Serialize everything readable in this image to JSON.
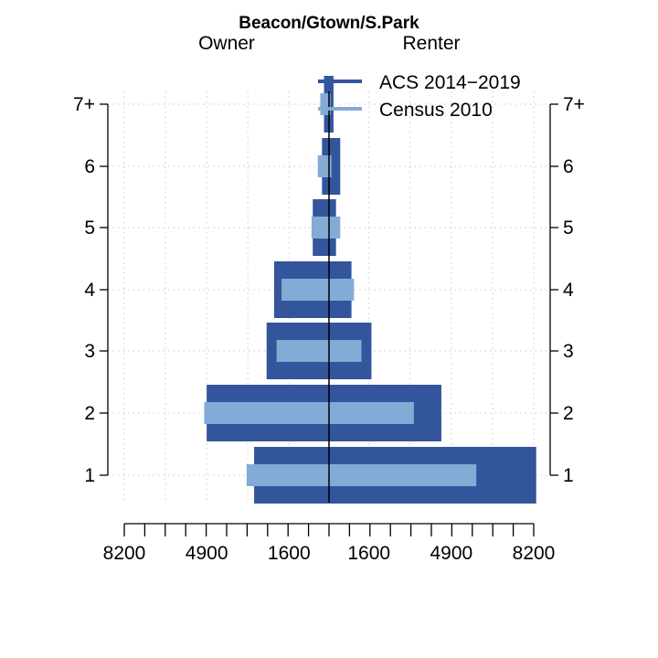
{
  "chart_data": {
    "type": "bar",
    "title": "Beacon/Gtown/S.Park",
    "left_label": "Owner",
    "right_label": "Renter",
    "categories": [
      "1",
      "2",
      "3",
      "4",
      "5",
      "6",
      "7+"
    ],
    "xlim": [
      -8200,
      8200
    ],
    "x_tick_labels": [
      "8200",
      "4900",
      "1600",
      "1600",
      "4900",
      "8200"
    ],
    "x_tick_values": [
      -8200,
      -4900,
      -1600,
      1600,
      4900,
      8200
    ],
    "series": [
      {
        "name": "ACS 2014−2019",
        "color": "#33559c",
        "owner": [
          3000,
          4900,
          2500,
          2200,
          650,
          280,
          200
        ],
        "renter": [
          8300,
          4500,
          1700,
          900,
          280,
          450,
          180
        ]
      },
      {
        "name": "Census 2010",
        "color": "#84abd6",
        "owner": [
          3300,
          5000,
          2100,
          1900,
          700,
          450,
          350
        ],
        "renter": [
          5900,
          3400,
          1300,
          1000,
          450,
          100,
          60
        ]
      }
    ],
    "grid": true,
    "legend_position": "top-right"
  }
}
